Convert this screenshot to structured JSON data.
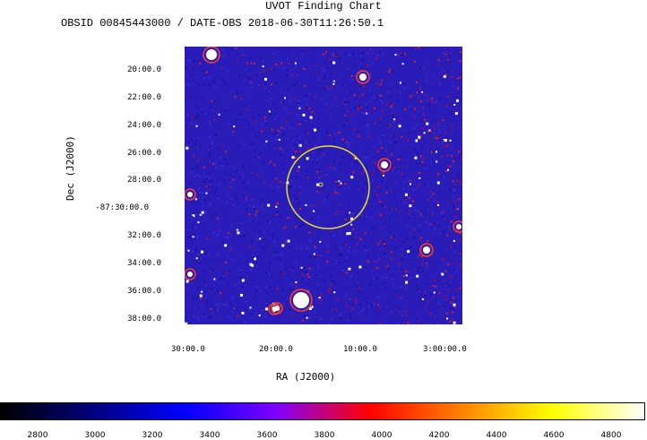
{
  "header": {
    "title": "UVOT Finding Chart",
    "subtitle": "OBSID 00845443000 / DATE-OBS 2018-06-30T11:26:50.1"
  },
  "axes": {
    "dec_label": "Dec (J2000)",
    "ra_label": "RA (J2000)",
    "dec_ticks": [
      "20:00.0",
      "22:00.0",
      "24:00.0",
      "26:00.0",
      "28:00.0",
      "-87:30:00.0",
      "32:00.0",
      "34:00.0",
      "36:00.0",
      "38:00.0"
    ],
    "ra_ticks": [
      "30:00.0",
      "20:00.0",
      "10:00.0",
      "3:00:00.0"
    ]
  },
  "colorbar": {
    "ticks": [
      "2800",
      "3000",
      "3200",
      "3400",
      "3600",
      "3800",
      "4000",
      "4200",
      "4400",
      "4600",
      "4800"
    ],
    "gradient_colors": [
      "#000000",
      "#00007f",
      "#0000ff",
      "#7f00ff",
      "#ff0000",
      "#ff8000",
      "#ffff00",
      "#ffffff"
    ]
  },
  "image": {
    "background_color": "#2a1cb8",
    "noise_colors": [
      "#1a10a0",
      "#3a2cd8",
      "#b01040",
      "#e02020",
      "#ffffff"
    ],
    "circle_color": "#e8e020"
  }
}
